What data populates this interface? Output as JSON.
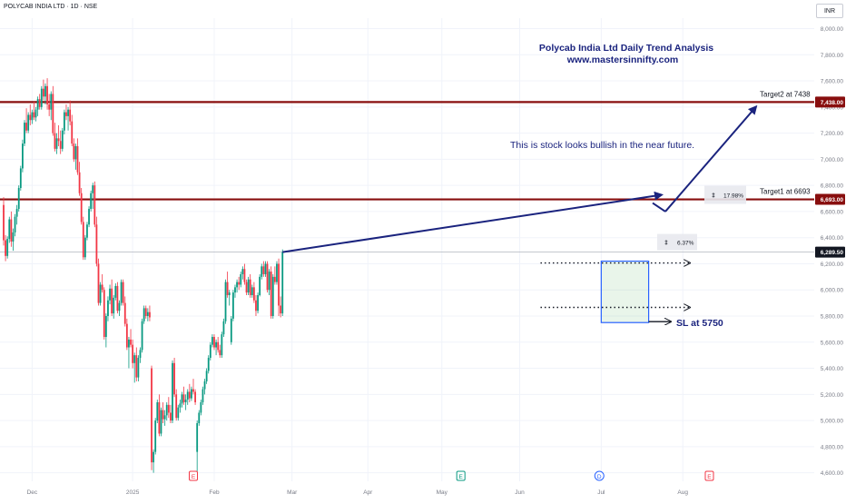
{
  "header": {
    "symbol": "POLYCAB INDIA LTD · 1D · NSE",
    "currency": "INR"
  },
  "colors": {
    "up": "#089981",
    "down": "#f23645",
    "resistance": "#880e0e",
    "annotation": "#1a237e",
    "grid": "#f0f3fa",
    "axis_text": "#787b86"
  },
  "chart_data": {
    "type": "candlestick",
    "title": "Polycab India Ltd Daily Trend Analysis",
    "subtitle": "www.mastersinnifty.com",
    "y_axis": {
      "ylim": [
        4535,
        8080
      ],
      "ticks": [
        "8,000.00",
        "7,800.00",
        "7,600.00",
        "7,400.00",
        "7,200.00",
        "7,000.00",
        "6,800.00",
        "6,600.00",
        "6,400.00",
        "6,200.00",
        "6,000.00",
        "5,800.00",
        "5,600.00",
        "5,400.00",
        "5,200.00",
        "5,000.00",
        "4,800.00",
        "4,600.00"
      ],
      "tick_values": [
        8000,
        7800,
        7600,
        7400,
        7200,
        7000,
        6800,
        6600,
        6400,
        6200,
        6000,
        5800,
        5600,
        5400,
        5200,
        5000,
        4800,
        4600
      ]
    },
    "x_axis": {
      "labels": [
        "Dec",
        "2025",
        "Feb",
        "Mar",
        "Apr",
        "May",
        "Jun",
        "Jul",
        "Aug"
      ],
      "label_index": [
        15,
        68,
        111,
        152,
        192,
        231,
        272,
        315,
        358
      ]
    },
    "price_labels": [
      {
        "value": 7438,
        "text": "7,438.00",
        "style": "level"
      },
      {
        "value": 6693,
        "text": "6,693.00",
        "style": "level"
      },
      {
        "value": 6289.5,
        "text": "6,289.50",
        "style": "last"
      }
    ],
    "levels": [
      {
        "name": "Target2 at 7438",
        "value": 7438
      },
      {
        "name": "Target1 at 6693",
        "value": 6693
      }
    ],
    "current_price": 6289.5,
    "annotations": {
      "bullish_note": "This is stock looks bullish in the near future.",
      "stop_loss": "SL at 5750",
      "measure_target1": "17.98%",
      "measure_breakout": "6.37%"
    },
    "consolidation": {
      "top": 6220,
      "bottom": 5750
    },
    "events": [
      {
        "label": "E",
        "index": 100,
        "color": "#f23645"
      },
      {
        "label": "E",
        "index": 241,
        "color": "#089981"
      },
      {
        "label": "D",
        "index": 314,
        "color": "#2962ff"
      },
      {
        "label": "E",
        "index": 372,
        "color": "#f23645"
      }
    ],
    "candles": [
      [
        6650,
        6710,
        6340,
        6380
      ],
      [
        6380,
        6420,
        6220,
        6260
      ],
      [
        6260,
        6410,
        6240,
        6390
      ],
      [
        6390,
        6560,
        6360,
        6540
      ],
      [
        6540,
        6600,
        6330,
        6370
      ],
      [
        6370,
        6470,
        6300,
        6440
      ],
      [
        6440,
        6580,
        6410,
        6560
      ],
      [
        6560,
        6650,
        6500,
        6620
      ],
      [
        6620,
        6800,
        6600,
        6780
      ],
      [
        6780,
        6950,
        6760,
        6930
      ],
      [
        6930,
        7150,
        6900,
        7120
      ],
      [
        7120,
        7300,
        7100,
        7280
      ],
      [
        7280,
        7390,
        7200,
        7220
      ],
      [
        7220,
        7360,
        7200,
        7340
      ],
      [
        7340,
        7420,
        7260,
        7300
      ],
      [
        7300,
        7380,
        7270,
        7360
      ],
      [
        7360,
        7440,
        7300,
        7320
      ],
      [
        7320,
        7400,
        7290,
        7380
      ],
      [
        7380,
        7480,
        7330,
        7460
      ],
      [
        7460,
        7500,
        7380,
        7400
      ],
      [
        7400,
        7560,
        7380,
        7540
      ],
      [
        7540,
        7610,
        7450,
        7480
      ],
      [
        7480,
        7580,
        7420,
        7560
      ],
      [
        7560,
        7620,
        7380,
        7420
      ],
      [
        7420,
        7500,
        7330,
        7380
      ],
      [
        7380,
        7520,
        7300,
        7500
      ],
      [
        7500,
        7560,
        7180,
        7200
      ],
      [
        7200,
        7280,
        7060,
        7080
      ],
      [
        7080,
        7200,
        7040,
        7160
      ],
      [
        7160,
        7260,
        7100,
        7140
      ],
      [
        7140,
        7220,
        7040,
        7080
      ],
      [
        7080,
        7240,
        7060,
        7220
      ],
      [
        7220,
        7380,
        7190,
        7360
      ],
      [
        7360,
        7420,
        7300,
        7330
      ],
      [
        7330,
        7400,
        7220,
        7380
      ],
      [
        7380,
        7450,
        7260,
        7290
      ],
      [
        7290,
        7340,
        7100,
        7120
      ],
      [
        7120,
        7160,
        6980,
        7000
      ],
      [
        7000,
        7120,
        6920,
        7100
      ],
      [
        7100,
        7160,
        6880,
        6900
      ],
      [
        6900,
        6980,
        6720,
        6740
      ],
      [
        6740,
        6780,
        6500,
        6520
      ],
      [
        6520,
        6560,
        6230,
        6250
      ],
      [
        6250,
        6420,
        6230,
        6400
      ],
      [
        6400,
        6520,
        6380,
        6500
      ],
      [
        6500,
        6640,
        6480,
        6620
      ],
      [
        6620,
        6760,
        6600,
        6740
      ],
      [
        6740,
        6820,
        6620,
        6800
      ],
      [
        6800,
        6830,
        6480,
        6500
      ],
      [
        6500,
        6560,
        6180,
        6200
      ],
      [
        6200,
        6240,
        5880,
        5900
      ],
      [
        5900,
        6060,
        5880,
        6040
      ],
      [
        6040,
        6120,
        5980,
        6000
      ],
      [
        6000,
        6020,
        5620,
        5640
      ],
      [
        5640,
        5820,
        5560,
        5800
      ],
      [
        5800,
        5950,
        5760,
        5920
      ],
      [
        5920,
        6040,
        5890,
        6010
      ],
      [
        6010,
        6080,
        5800,
        5820
      ],
      [
        5820,
        5960,
        5780,
        5940
      ],
      [
        5940,
        6050,
        5920,
        6030
      ],
      [
        6030,
        6060,
        5820,
        5840
      ],
      [
        5840,
        5920,
        5800,
        5900
      ],
      [
        5900,
        6080,
        5880,
        6060
      ],
      [
        6060,
        6080,
        5880,
        5900
      ],
      [
        5900,
        5950,
        5720,
        5740
      ],
      [
        5740,
        5780,
        5540,
        5560
      ],
      [
        5560,
        5640,
        5400,
        5620
      ],
      [
        5620,
        5700,
        5560,
        5580
      ],
      [
        5580,
        5620,
        5400,
        5440
      ],
      [
        5440,
        5520,
        5290,
        5500
      ],
      [
        5500,
        5560,
        5300,
        5330
      ],
      [
        5330,
        5500,
        5300,
        5480
      ],
      [
        5480,
        5560,
        5440,
        5540
      ],
      [
        5540,
        5780,
        5520,
        5760
      ],
      [
        5760,
        5880,
        5740,
        5860
      ],
      [
        5860,
        5880,
        5780,
        5800
      ],
      [
        5800,
        5860,
        5760,
        5830
      ],
      [
        5830,
        5880,
        5760,
        5790
      ],
      [
        5400,
        5420,
        4620,
        4680
      ],
      [
        4680,
        4780,
        4600,
        4760
      ],
      [
        4760,
        5020,
        4740,
        5000
      ],
      [
        5000,
        5160,
        4980,
        5140
      ],
      [
        5140,
        5200,
        4880,
        4900
      ],
      [
        4900,
        5100,
        4880,
        5080
      ],
      [
        5080,
        5140,
        4980,
        5010
      ],
      [
        5010,
        5080,
        4960,
        5040
      ],
      [
        5040,
        5140,
        5000,
        5120
      ],
      [
        5120,
        5180,
        5020,
        5060
      ],
      [
        5060,
        5120,
        4980,
        5000
      ],
      [
        5000,
        5460,
        4980,
        5440
      ],
      [
        5440,
        5480,
        5180,
        5200
      ],
      [
        5200,
        5240,
        5000,
        5020
      ],
      [
        5020,
        5120,
        5000,
        5100
      ],
      [
        5100,
        5160,
        5060,
        5130
      ],
      [
        5130,
        5220,
        5100,
        5200
      ],
      [
        5200,
        5260,
        5120,
        5140
      ],
      [
        5140,
        5200,
        5080,
        5160
      ],
      [
        5160,
        5240,
        5120,
        5220
      ],
      [
        5220,
        5280,
        5140,
        5170
      ],
      [
        5170,
        5260,
        5150,
        5240
      ],
      [
        5240,
        5320,
        5200,
        5220
      ],
      [
        5220,
        5240,
        5120,
        5140
      ],
      [
        4760,
        5000,
        4600,
        4980
      ],
      [
        4980,
        5080,
        4960,
        5060
      ],
      [
        5060,
        5160,
        5040,
        5140
      ],
      [
        5140,
        5260,
        5120,
        5240
      ],
      [
        5240,
        5320,
        5200,
        5300
      ],
      [
        5300,
        5400,
        5280,
        5380
      ],
      [
        5380,
        5500,
        5360,
        5480
      ],
      [
        5480,
        5600,
        5460,
        5580
      ],
      [
        5580,
        5660,
        5560,
        5640
      ],
      [
        5640,
        5660,
        5540,
        5560
      ],
      [
        5560,
        5620,
        5500,
        5600
      ],
      [
        5600,
        5640,
        5520,
        5540
      ],
      [
        5540,
        5580,
        5480,
        5500
      ],
      [
        5500,
        5680,
        5480,
        5660
      ],
      [
        5660,
        5780,
        5640,
        5760
      ],
      [
        5760,
        6080,
        5740,
        6060
      ],
      [
        6060,
        6140,
        5940,
        5960
      ],
      [
        5960,
        6000,
        5880,
        5980
      ],
      [
        5600,
        5800,
        5580,
        5780
      ],
      [
        5780,
        6000,
        5760,
        5980
      ],
      [
        5980,
        6040,
        5940,
        6020
      ],
      [
        6020,
        6080,
        5980,
        6060
      ],
      [
        6060,
        6100,
        6000,
        6040
      ],
      [
        6040,
        6140,
        6020,
        6120
      ],
      [
        6120,
        6180,
        6080,
        6160
      ],
      [
        6160,
        6200,
        6040,
        6060
      ],
      [
        6060,
        6080,
        5960,
        5980
      ],
      [
        5980,
        6100,
        5960,
        6080
      ],
      [
        6080,
        6120,
        5940,
        5960
      ],
      [
        5960,
        6040,
        5940,
        6020
      ],
      [
        6020,
        6060,
        5900,
        5920
      ],
      [
        5920,
        5960,
        5800,
        5840
      ],
      [
        5840,
        5980,
        5820,
        5960
      ],
      [
        5960,
        6120,
        5950,
        6100
      ],
      [
        6100,
        6200,
        6080,
        6180
      ],
      [
        6180,
        6220,
        6100,
        6120
      ],
      [
        6120,
        6220,
        6100,
        6200
      ],
      [
        6200,
        6220,
        5980,
        6000
      ],
      [
        6000,
        6160,
        5960,
        6140
      ],
      [
        6140,
        6180,
        5780,
        5800
      ],
      [
        5800,
        6120,
        5780,
        6100
      ],
      [
        6100,
        6180,
        6040,
        6060
      ],
      [
        6060,
        6220,
        6040,
        6200
      ],
      [
        6200,
        6240,
        5800,
        5880
      ],
      [
        5880,
        5950,
        5790,
        5820
      ],
      [
        5820,
        6310,
        5800,
        6290
      ]
    ]
  }
}
